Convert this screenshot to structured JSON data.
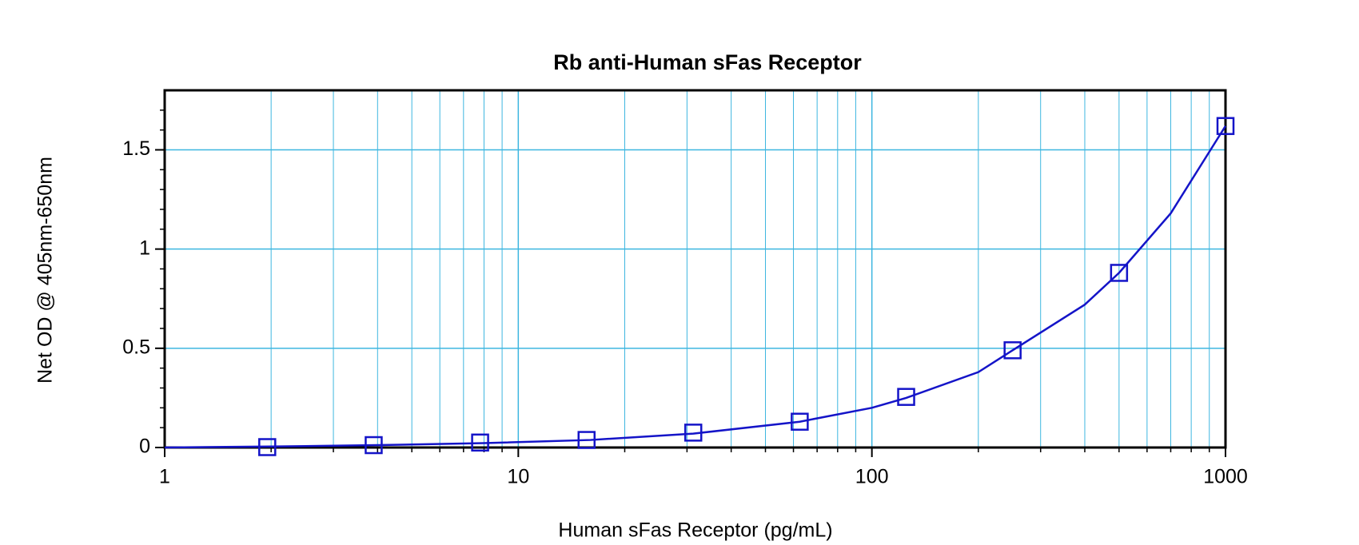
{
  "chart_data": {
    "type": "scatter",
    "title": "Rb anti-Human sFas  Receptor",
    "x_label": "Human sFas Receptor (pg/mL)",
    "y_label": "Net OD @ 405nm-650nm",
    "x_scale": "log",
    "xlim": [
      1,
      1000
    ],
    "xticks": [
      1,
      10,
      100,
      1000
    ],
    "xminorticks": [
      2,
      3,
      4,
      5,
      6,
      7,
      8,
      9,
      20,
      30,
      40,
      50,
      60,
      70,
      80,
      90,
      200,
      300,
      400,
      500,
      600,
      700,
      800,
      900
    ],
    "ylim": [
      0,
      1.8
    ],
    "yticks": [
      0,
      0.5,
      1,
      1.5
    ],
    "yminorticks": [
      0.1,
      0.2,
      0.3,
      0.4,
      0.6,
      0.7,
      0.8,
      0.9,
      1.1,
      1.2,
      1.3,
      1.4,
      1.6,
      1.7
    ],
    "grid": true,
    "grid_color": "#3db6e0",
    "series": [
      {
        "style": "markers",
        "marker": "square",
        "color": "#1414c8",
        "x": [
          1.95,
          3.9,
          7.8,
          15.6,
          31.25,
          62.5,
          125,
          250,
          500,
          1000
        ],
        "values": [
          0.002,
          0.012,
          0.025,
          0.038,
          0.075,
          0.13,
          0.255,
          0.49,
          0.88,
          1.62
        ]
      },
      {
        "style": "line",
        "color": "#1414c8",
        "x": [
          1,
          2,
          4,
          8,
          16,
          31.25,
          62.5,
          100,
          125,
          200,
          250,
          400,
          500,
          700,
          1000
        ],
        "values": [
          0,
          0.005,
          0.012,
          0.022,
          0.038,
          0.07,
          0.13,
          0.2,
          0.25,
          0.38,
          0.49,
          0.72,
          0.88,
          1.18,
          1.62
        ]
      }
    ]
  }
}
